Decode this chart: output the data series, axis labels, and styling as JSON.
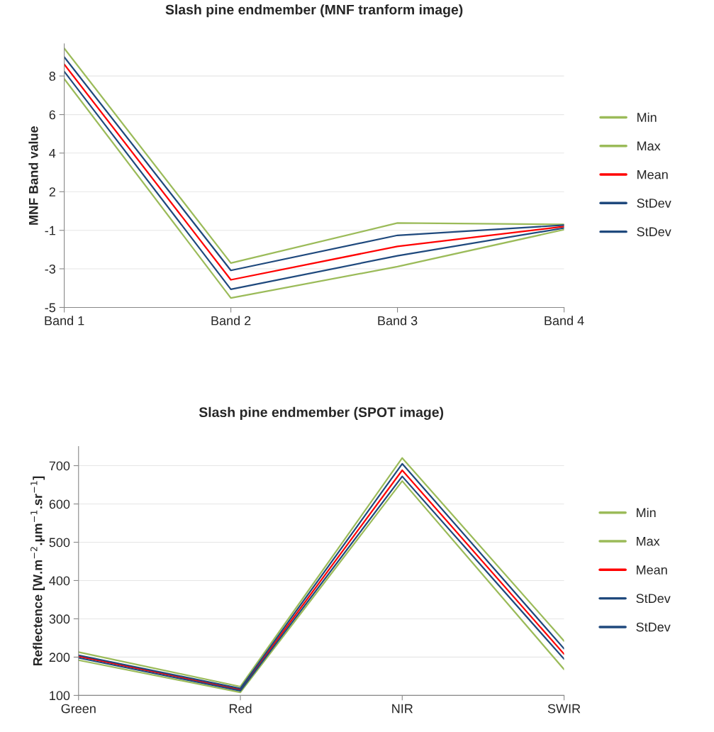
{
  "chart_data": [
    {
      "type": "line",
      "title": "Slash pine endmember (MNF tranform image)",
      "ylabel": "MNF Band value",
      "categories": [
        "Band 1",
        "Band 2",
        "Band 3",
        "Band 4"
      ],
      "series": [
        {
          "name": "Min",
          "color": "#9bbb59",
          "values": [
            7.84,
            -4.47,
            -2.71,
            -0.63
          ]
        },
        {
          "name": "Max",
          "color": "#9bbb59",
          "values": [
            9.55,
            -2.51,
            -0.26,
            -0.34
          ]
        },
        {
          "name": "Mean",
          "color": "#ff0000",
          "values": [
            8.65,
            -3.45,
            -1.57,
            -0.46
          ]
        },
        {
          "name": "StDev",
          "color": "#1f497d",
          "values": [
            9.06,
            -2.92,
            -0.95,
            -0.38
          ]
        },
        {
          "name": "StDev",
          "color": "#1f497d",
          "values": [
            8.25,
            -3.98,
            -2.1,
            -0.54
          ]
        }
      ],
      "ylim": [
        -5,
        9.8
      ],
      "yticks": [
        {
          "value": -5,
          "label": "-5"
        },
        {
          "value": -2.83,
          "label": "-3"
        },
        {
          "value": -0.67,
          "label": "-1"
        },
        {
          "value": 1.5,
          "label": "2"
        },
        {
          "value": 3.67,
          "label": "4"
        },
        {
          "value": 5.83,
          "label": "6"
        },
        {
          "value": 8,
          "label": "8"
        }
      ],
      "grid": "y",
      "legend": "right",
      "marker": "none",
      "line_style": "solid"
    },
    {
      "type": "line",
      "title": "Slash pine endmember (SPOT image)",
      "ylabel": "Reflectence [W.m$^{−2}$.μm$^{−1}$.sr$^{−1}$]",
      "categories": [
        "Green",
        "Red",
        "NIR",
        "SWIR"
      ],
      "series": [
        {
          "name": "Min",
          "color": "#9bbb59",
          "values": [
            192,
            108,
            660,
            168
          ]
        },
        {
          "name": "Max",
          "color": "#9bbb59",
          "values": [
            213,
            123,
            720,
            242
          ]
        },
        {
          "name": "Mean",
          "color": "#ff0000",
          "values": [
            202,
            115,
            688,
            208
          ]
        },
        {
          "name": "StDev",
          "color": "#1f497d",
          "values": [
            205,
            118,
            705,
            222
          ]
        },
        {
          "name": "StDev",
          "color": "#1f497d",
          "values": [
            198,
            112,
            672,
            195
          ]
        }
      ],
      "ylim": [
        100,
        750
      ],
      "yticks": [
        100,
        200,
        300,
        400,
        500,
        600,
        700
      ],
      "grid": "y",
      "legend": "right",
      "marker": "none",
      "line_style": "solid"
    }
  ]
}
